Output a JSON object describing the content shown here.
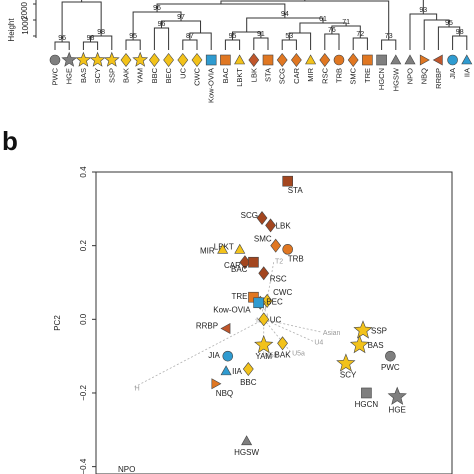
{
  "colors": {
    "grey": "#7f7f7f",
    "yellow": "#f2c21b",
    "orange": "#e07722",
    "blue": "#2f9bd0",
    "brown": "#c0562b",
    "dark_brown": "#a3461f",
    "light_grey": "#b0b0b0"
  },
  "panel_b_label": "b",
  "dendrogram": {
    "ylabel": "Height",
    "y_ticks": [
      "0",
      "1000",
      "2000"
    ],
    "leaves": [
      {
        "label": "PWC",
        "shape": "circle",
        "color": "grey"
      },
      {
        "label": "HGE",
        "shape": "star",
        "color": "grey"
      },
      {
        "label": "BAS",
        "shape": "star",
        "color": "yellow"
      },
      {
        "label": "SCY",
        "shape": "star",
        "color": "yellow"
      },
      {
        "label": "SSP",
        "shape": "star",
        "color": "yellow"
      },
      {
        "label": "BAK",
        "shape": "diamond",
        "color": "yellow"
      },
      {
        "label": "YAM",
        "shape": "star",
        "color": "yellow"
      },
      {
        "label": "BBC",
        "shape": "diamond",
        "color": "yellow"
      },
      {
        "label": "BEC",
        "shape": "diamond",
        "color": "yellow"
      },
      {
        "label": "UC",
        "shape": "diamond",
        "color": "yellow"
      },
      {
        "label": "CWC",
        "shape": "diamond",
        "color": "yellow"
      },
      {
        "label": "Kow-OVIA",
        "shape": "square",
        "color": "blue"
      },
      {
        "label": "BAC",
        "shape": "square",
        "color": "orange"
      },
      {
        "label": "LBKT",
        "shape": "triangle",
        "color": "yellow"
      },
      {
        "label": "LBK",
        "shape": "diamond",
        "color": "brown"
      },
      {
        "label": "STA",
        "shape": "square",
        "color": "orange"
      },
      {
        "label": "SCG",
        "shape": "diamond",
        "color": "orange"
      },
      {
        "label": "CAR",
        "shape": "diamond",
        "color": "orange"
      },
      {
        "label": "MIR",
        "shape": "triangle",
        "color": "yellow"
      },
      {
        "label": "RSC",
        "shape": "diamond",
        "color": "orange"
      },
      {
        "label": "TRB",
        "shape": "circle",
        "color": "orange"
      },
      {
        "label": "SMC",
        "shape": "diamond",
        "color": "orange"
      },
      {
        "label": "TRE",
        "shape": "square",
        "color": "orange"
      },
      {
        "label": "HGCN",
        "shape": "square",
        "color": "grey"
      },
      {
        "label": "HGSW",
        "shape": "triangle",
        "color": "grey"
      },
      {
        "label": "NPO",
        "shape": "triangle",
        "color": "grey"
      },
      {
        "label": "NBQ",
        "shape": "triangle-right",
        "color": "orange"
      },
      {
        "label": "RRBP",
        "shape": "triangle-left",
        "color": "brown"
      },
      {
        "label": "JIA",
        "shape": "circle",
        "color": "blue"
      },
      {
        "label": "IIA",
        "shape": "triangle",
        "color": "blue"
      }
    ],
    "node_labels": [
      "96",
      "98",
      "98",
      "97",
      "96",
      "95",
      "96",
      "87",
      "95",
      "94",
      "91",
      "53",
      "61",
      "71",
      "76",
      "72",
      "96",
      "73",
      "93",
      "95",
      "98"
    ]
  },
  "pca": {
    "ylabel": "PC2",
    "y_ticks": [
      0.4,
      0.2,
      0.0,
      -0.2,
      -0.4
    ],
    "y_tick_labels": [
      "0.4",
      "0.2",
      "0.0",
      "−0.2",
      "−0.4"
    ],
    "ylim": [
      -0.42,
      0.4
    ],
    "xlim": [
      -0.42,
      0.62
    ],
    "points": [
      {
        "label": "STA",
        "x": 0.14,
        "y": 0.375,
        "shape": "square",
        "color": "dark_brown"
      },
      {
        "label": "SCG",
        "x": 0.065,
        "y": 0.275,
        "shape": "diamond",
        "color": "dark_brown"
      },
      {
        "label": "LBK",
        "x": 0.09,
        "y": 0.255,
        "shape": "diamond",
        "color": "dark_brown"
      },
      {
        "label": "SMC",
        "x": 0.105,
        "y": 0.2,
        "shape": "diamond",
        "color": "orange"
      },
      {
        "label": "TRB",
        "x": 0.14,
        "y": 0.19,
        "shape": "circle",
        "color": "orange"
      },
      {
        "label": "LBKT",
        "x": 0.0,
        "y": 0.19,
        "shape": "triangle",
        "color": "yellow"
      },
      {
        "label": "MIR",
        "x": -0.05,
        "y": 0.19,
        "shape": "triangle",
        "color": "yellow"
      },
      {
        "label": "CAR",
        "x": 0.015,
        "y": 0.155,
        "shape": "diamond",
        "color": "dark_brown"
      },
      {
        "label": "BAC",
        "x": 0.04,
        "y": 0.155,
        "shape": "square",
        "color": "dark_brown"
      },
      {
        "label": "RSC",
        "x": 0.07,
        "y": 0.125,
        "shape": "diamond",
        "color": "dark_brown"
      },
      {
        "label": "TRE",
        "x": 0.04,
        "y": 0.06,
        "shape": "square",
        "color": "orange"
      },
      {
        "label": "CWC",
        "x": 0.08,
        "y": 0.05,
        "shape": "diamond",
        "color": "yellow"
      },
      {
        "label": "BEC",
        "x": 0.06,
        "y": 0.045,
        "shape": "diamond",
        "color": "yellow"
      },
      {
        "label": "Kow-OVIA",
        "x": 0.055,
        "y": 0.045,
        "shape": "square",
        "color": "blue"
      },
      {
        "label": "UC",
        "x": 0.07,
        "y": 0.0,
        "shape": "diamond",
        "color": "yellow"
      },
      {
        "label": "RRBP",
        "x": -0.04,
        "y": -0.025,
        "shape": "triangle-left",
        "color": "brown"
      },
      {
        "label": "JIA",
        "x": -0.035,
        "y": -0.1,
        "shape": "circle",
        "color": "blue"
      },
      {
        "label": "YAM",
        "x": 0.07,
        "y": -0.07,
        "shape": "star",
        "color": "yellow"
      },
      {
        "label": "BAK",
        "x": 0.125,
        "y": -0.065,
        "shape": "diamond",
        "color": "yellow"
      },
      {
        "label": "BBC",
        "x": 0.025,
        "y": -0.135,
        "shape": "diamond",
        "color": "yellow"
      },
      {
        "label": "IIA",
        "x": -0.04,
        "y": -0.14,
        "shape": "triangle",
        "color": "blue"
      },
      {
        "label": "NBQ",
        "x": -0.07,
        "y": -0.175,
        "shape": "triangle-right",
        "color": "orange"
      },
      {
        "label": "SSP",
        "x": 0.36,
        "y": -0.03,
        "shape": "star",
        "color": "yellow"
      },
      {
        "label": "BAS",
        "x": 0.35,
        "y": -0.07,
        "shape": "star",
        "color": "yellow"
      },
      {
        "label": "SCY",
        "x": 0.31,
        "y": -0.12,
        "shape": "star",
        "color": "yellow"
      },
      {
        "label": "PWC",
        "x": 0.44,
        "y": -0.1,
        "shape": "circle",
        "color": "grey"
      },
      {
        "label": "HGCN",
        "x": 0.37,
        "y": -0.2,
        "shape": "square",
        "color": "grey"
      },
      {
        "label": "HGE",
        "x": 0.46,
        "y": -0.21,
        "shape": "star",
        "color": "grey"
      },
      {
        "label": "HGSW",
        "x": 0.02,
        "y": -0.33,
        "shape": "triangle",
        "color": "grey"
      }
    ],
    "haplogroups": [
      {
        "label": "T2",
        "x": 0.1,
        "y": 0.16
      },
      {
        "label": "U5a",
        "x": 0.15,
        "y": -0.09
      },
      {
        "label": "U5b",
        "x": 0.07,
        "y": -0.095
      },
      {
        "label": "U4",
        "x": 0.215,
        "y": -0.06
      },
      {
        "label": "Asian",
        "x": 0.24,
        "y": -0.035
      },
      {
        "label": "H",
        "x": -0.31,
        "y": -0.185
      },
      {
        "label": "U",
        "x": 0.065,
        "y": 0.01
      },
      {
        "label": "N",
        "x": 0.045,
        "y": 0.0
      },
      {
        "label": "J",
        "x": 0.065,
        "y": 0.035
      }
    ],
    "corner_label": "NPO"
  }
}
